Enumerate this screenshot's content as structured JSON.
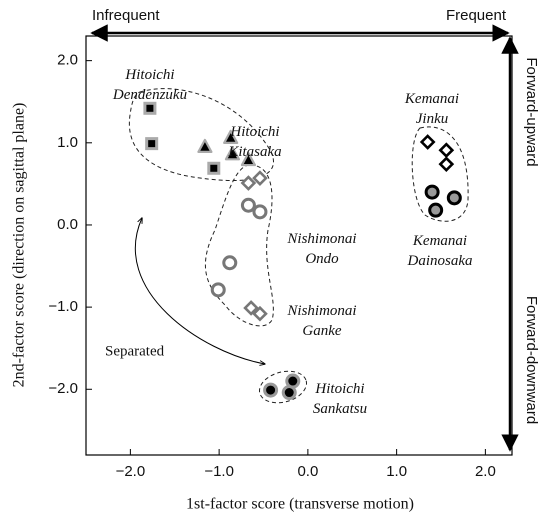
{
  "chart_data": {
    "type": "scatter",
    "x_label": "1st-factor score (transverse motion)",
    "y_label": "2nd-factor score (direction on sagittal plane)",
    "annotations": [
      "Infrequent",
      "Frequent",
      "Forward-upward",
      "Forward-downward",
      "Separated"
    ],
    "xlim": [
      -2.5,
      2.3
    ],
    "ylim": [
      -2.8,
      2.3
    ],
    "xticks": [
      {
        "value": -2,
        "label": "−2.0"
      },
      {
        "value": -1,
        "label": "−1.0"
      },
      {
        "value": 0,
        "label": "0.0"
      },
      {
        "value": 1,
        "label": "1.0"
      },
      {
        "value": 2,
        "label": "2.0"
      }
    ],
    "yticks": [
      {
        "value": 2,
        "label": "2.0"
      },
      {
        "value": 1,
        "label": "1.0"
      },
      {
        "value": 0,
        "label": "0.0"
      },
      {
        "value": -1,
        "label": "−1.0"
      },
      {
        "value": -2,
        "label": "−2.0"
      }
    ],
    "series": [
      {
        "name": "Hitoichi Dendenzuku",
        "marker": "square",
        "color": "#000000",
        "edge": "#aaaaaa",
        "x": [
          -1.78,
          -1.76,
          -1.06
        ],
        "values": [
          1.42,
          0.99,
          0.69
        ]
      },
      {
        "name": "Hitoichi Kitasaka",
        "marker": "triangle",
        "color": "#000000",
        "edge": "#aaaaaa",
        "x": [
          -1.16,
          -0.87,
          -0.85,
          -0.67
        ],
        "values": [
          0.95,
          1.06,
          0.86,
          0.79
        ]
      },
      {
        "name": "Nishimonai Ondo",
        "marker": "circle",
        "color": "#ffffff",
        "edge": "#777777",
        "x": [
          -0.67,
          -0.54,
          -0.88,
          -1.01
        ],
        "values": [
          0.24,
          0.16,
          -0.46,
          -0.79
        ]
      },
      {
        "name": "Nishimonai Ganke",
        "marker": "diamond",
        "color": "#ffffff",
        "edge": "#777777",
        "x": [
          -0.67,
          -0.54,
          -0.64,
          -0.54
        ],
        "values": [
          0.51,
          0.57,
          -1.01,
          -1.08
        ]
      },
      {
        "name": "Hitoichi Sankatsu",
        "marker": "circle",
        "color": "#000000",
        "edge": "#999999",
        "x": [
          -0.42,
          -0.21,
          -0.17
        ],
        "values": [
          -2.01,
          -2.04,
          -1.9
        ]
      },
      {
        "name": "Kemanai Jinku",
        "marker": "diamond",
        "color": "#ffffff",
        "edge": "#000000",
        "x": [
          1.35,
          1.56,
          1.56
        ],
        "values": [
          1.01,
          0.91,
          0.74
        ]
      },
      {
        "name": "Kemanai Dainosaka",
        "marker": "circle",
        "color": "#999999",
        "edge": "#000000",
        "x": [
          1.4,
          1.65,
          1.44
        ],
        "values": [
          0.4,
          0.33,
          0.18
        ]
      }
    ]
  }
}
